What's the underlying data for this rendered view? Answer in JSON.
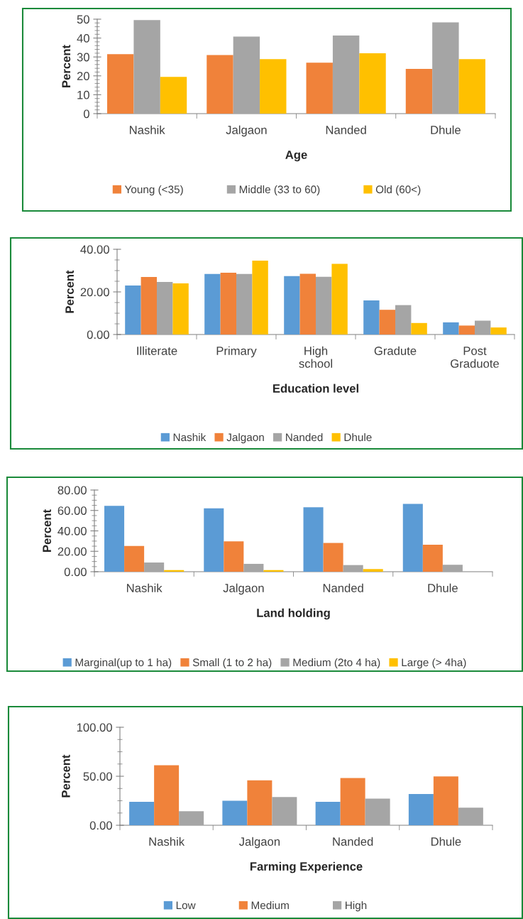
{
  "chart_data": [
    {
      "type": "bar",
      "xlabel": "Age",
      "ylabel": "Percent",
      "categories": [
        "Nashik",
        "Jalgaon",
        "Nanded",
        "Dhule"
      ],
      "ylim": [
        0,
        50
      ],
      "yticks": [
        0,
        10,
        20,
        30,
        40,
        50
      ],
      "grid": false,
      "legend": "bottom",
      "series": [
        {
          "name": "Young (<35)",
          "color": "#f0823a",
          "values": [
            31.5,
            31,
            27,
            23.7
          ]
        },
        {
          "name": "Middle (33 to 60)",
          "color": "#a5a5a5",
          "values": [
            49.5,
            40.8,
            41.4,
            48.3
          ]
        },
        {
          "name": "Old (60<)",
          "color": "#ffc000",
          "values": [
            19.5,
            28.9,
            32,
            28.9
          ]
        }
      ]
    },
    {
      "type": "bar",
      "xlabel": "Education level",
      "ylabel": "Percent",
      "categories": [
        "Illiterate",
        "Primary",
        "High\nschool",
        "Gradute",
        "Post\nGraduote"
      ],
      "ylim": [
        0,
        40
      ],
      "yticks": [
        {
          "value": 0,
          "label": "0.00"
        },
        {
          "value": 20,
          "label": "20.00"
        },
        {
          "value": 40,
          "label": "40.00"
        }
      ],
      "grid": false,
      "legend": "bottom",
      "series": [
        {
          "name": "Nashik",
          "color": "#5b9bd5",
          "values": [
            23,
            28.4,
            27.4,
            16,
            5.7
          ]
        },
        {
          "name": "Jalgaon",
          "color": "#f0823a",
          "values": [
            27,
            29,
            28.5,
            11.6,
            4.2
          ]
        },
        {
          "name": "Nanded",
          "color": "#a5a5a5",
          "values": [
            24.7,
            28.4,
            27.1,
            13.8,
            6.5
          ]
        },
        {
          "name": "Dhule",
          "color": "#ffc000",
          "values": [
            24,
            34.7,
            33.2,
            5.4,
            3.3
          ]
        }
      ]
    },
    {
      "type": "bar",
      "xlabel": "Land holding",
      "ylabel": "Percent",
      "categories": [
        "Nashik",
        "Jalgaon",
        "Nanded",
        "Dhule"
      ],
      "ylim": [
        0,
        80
      ],
      "yticks": [
        {
          "value": 0,
          "label": "0.00"
        },
        {
          "value": 20,
          "label": "20.00"
        },
        {
          "value": 40,
          "label": "40.00"
        },
        {
          "value": 60,
          "label": "60.00"
        },
        {
          "value": 80,
          "label": "80.00"
        }
      ],
      "grid": false,
      "legend": "bottom",
      "series": [
        {
          "name": "Marginal(up to 1 ha)",
          "color": "#5b9bd5",
          "values": [
            64.5,
            62,
            63.2,
            66.5
          ]
        },
        {
          "name": "Small (1 to 2 ha)",
          "color": "#f0823a",
          "values": [
            25.2,
            29.7,
            28.1,
            26.5
          ]
        },
        {
          "name": "Medium (2to 4 ha)",
          "color": "#a5a5a5",
          "values": [
            9,
            7.7,
            6.5,
            6.8
          ]
        },
        {
          "name": "Large (> 4ha)",
          "color": "#ffc000",
          "values": [
            1.6,
            1.6,
            2.6,
            0
          ]
        }
      ]
    },
    {
      "type": "bar",
      "xlabel": "Farming Experience",
      "ylabel": "Percent",
      "categories": [
        "Nashik",
        "Jalgaon",
        "Nanded",
        "Dhule"
      ],
      "ylim": [
        0,
        100
      ],
      "yticks": [
        {
          "value": 0,
          "label": "0.00"
        },
        {
          "value": 50,
          "label": "50.00"
        },
        {
          "value": 100,
          "label": "100.00"
        }
      ],
      "grid": false,
      "legend": "bottom",
      "series": [
        {
          "name": "Low",
          "color": "#5b9bd5",
          "values": [
            24,
            25,
            24,
            31.8
          ]
        },
        {
          "name": "Medium",
          "color": "#f0823a",
          "values": [
            61.2,
            45.8,
            48.2,
            49.8
          ]
        },
        {
          "name": "High",
          "color": "#a5a5a5",
          "values": [
            14.4,
            28.8,
            27.1,
            18
          ]
        }
      ]
    }
  ]
}
